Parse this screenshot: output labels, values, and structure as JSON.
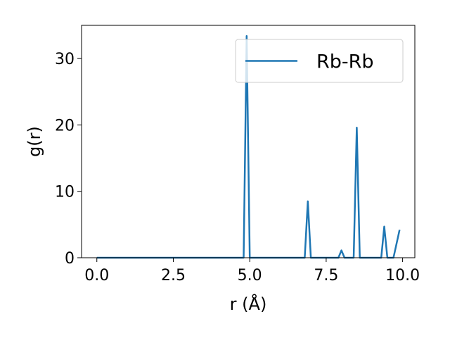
{
  "chart_data": {
    "type": "line",
    "xlabel": "r (Å)",
    "ylabel": "g(r)",
    "xlim": [
      -0.5,
      10.4
    ],
    "ylim": [
      0,
      35
    ],
    "xticks": [
      0.0,
      2.5,
      5.0,
      7.5,
      10.0
    ],
    "xtick_labels": [
      "0.0",
      "2.5",
      "5.0",
      "7.5",
      "10.0"
    ],
    "yticks": [
      0,
      10,
      20,
      30
    ],
    "ytick_labels": [
      "0",
      "10",
      "20",
      "30"
    ],
    "grid": false,
    "legend": "top-right",
    "series": [
      {
        "name": "Rb-Rb",
        "color": "#1f77b4",
        "x": [
          0.0,
          4.8,
          4.9,
          5.0,
          6.8,
          6.9,
          7.0,
          7.9,
          8.0,
          8.1,
          8.4,
          8.5,
          8.6,
          9.3,
          9.4,
          9.5,
          9.7,
          9.9
        ],
        "y": [
          0,
          0,
          33.4,
          0,
          0,
          8.5,
          0,
          0,
          1.1,
          0,
          0,
          19.6,
          0,
          0,
          4.7,
          0,
          0,
          4.2
        ]
      }
    ]
  }
}
